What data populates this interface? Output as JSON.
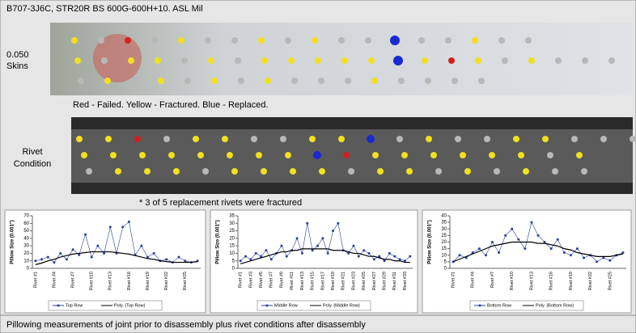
{
  "header": {
    "title": "B707-3J6C, STR20R BS 600G-600H+10. ASL Mil"
  },
  "photo_labels": {
    "skins_1": "0.050",
    "skins_2": "Skins",
    "rivet_1": "Rivet",
    "rivet_2": "Condition"
  },
  "captions": {
    "legend": "Red - Failed. Yellow - Fractured. Blue - Replaced.",
    "note": "* 3 of 5 replacement rivets were fractured"
  },
  "footer": "Pillowing measurements of joint prior to disassembly plus rivet conditions after disassembly",
  "chart_data": [
    {
      "type": "line",
      "y_label": "Pillow Size (0.001\")",
      "ylim": [
        0,
        70
      ],
      "yticks": [
        0,
        10,
        20,
        30,
        40,
        50,
        60,
        70
      ],
      "categories": [
        "Rivet #1",
        null,
        null,
        "Rivet #4",
        null,
        null,
        "Rivet #7",
        null,
        null,
        "Rivet #10",
        null,
        null,
        "Rivet #13",
        null,
        null,
        "Rivet #16",
        null,
        null,
        "Rivet #19",
        null,
        null,
        "Rivet #22",
        null,
        null,
        "Rivet #25",
        null,
        null
      ],
      "series": [
        {
          "name": "Top Row",
          "color": "#2a3fa0",
          "marker": true,
          "values": [
            10,
            12,
            15,
            8,
            20,
            12,
            25,
            18,
            45,
            15,
            30,
            20,
            55,
            20,
            55,
            62,
            18,
            30,
            15,
            20,
            10,
            12,
            8,
            15,
            10,
            8,
            10
          ]
        },
        {
          "name": "Poly. (Top Row)",
          "color": "#000000",
          "marker": false,
          "values": [
            5,
            7,
            10,
            12,
            15,
            17,
            19,
            20,
            21,
            22,
            22,
            22,
            22,
            21,
            20,
            19,
            17,
            15,
            13,
            12,
            10,
            9,
            8,
            8,
            8,
            8,
            9
          ]
        }
      ]
    },
    {
      "type": "line",
      "y_label": "Pillow Size (0.001\")",
      "ylim": [
        0,
        35
      ],
      "yticks": [
        0,
        5,
        10,
        15,
        20,
        25,
        30,
        35
      ],
      "categories": [
        "Rivet #1",
        null,
        "Rivet #3",
        null,
        "Rivet #5",
        null,
        "Rivet #7",
        null,
        "Rivet #9",
        null,
        "Rivet #11",
        null,
        "Rivet #13",
        null,
        "Rivet #15",
        null,
        "Rivet #17",
        null,
        "Rivet #19",
        null,
        "Rivet #21",
        null,
        "Rivet #23",
        null,
        "Rivet #25",
        null,
        "Rivet #27",
        null,
        "Rivet #29",
        null,
        "Rivet #31",
        null,
        "Rivet #33",
        null
      ],
      "series": [
        {
          "name": "Middle Row",
          "color": "#2a3fa0",
          "marker": true,
          "values": [
            5,
            8,
            6,
            10,
            8,
            12,
            6,
            10,
            15,
            8,
            12,
            20,
            10,
            30,
            12,
            15,
            20,
            10,
            25,
            30,
            12,
            10,
            15,
            8,
            12,
            10,
            6,
            8,
            5,
            10,
            8,
            6,
            5,
            8
          ]
        },
        {
          "name": "Poly. (Middle Row)",
          "color": "#000000",
          "marker": false,
          "values": [
            3,
            4,
            5,
            6,
            7,
            8,
            9,
            10,
            11,
            11,
            12,
            12,
            13,
            13,
            13,
            13,
            13,
            13,
            12,
            12,
            12,
            11,
            10,
            10,
            9,
            8,
            8,
            7,
            6,
            6,
            5,
            5,
            4,
            4
          ]
        }
      ]
    },
    {
      "type": "line",
      "y_label": "Pillow Size (0.001\")",
      "ylim": [
        0,
        40
      ],
      "yticks": [
        0,
        5,
        10,
        15,
        20,
        25,
        30,
        35,
        40
      ],
      "categories": [
        "Rivet #1",
        null,
        null,
        "Rivet #4",
        null,
        null,
        "Rivet #7",
        null,
        null,
        "Rivet #10",
        null,
        null,
        "Rivet #13",
        null,
        null,
        "Rivet #16",
        null,
        null,
        "Rivet #19",
        null,
        null,
        "Rivet #22",
        null,
        null,
        "Rivet #25",
        null,
        null
      ],
      "series": [
        {
          "name": "Bottom Row",
          "color": "#2a3fa0",
          "marker": true,
          "values": [
            5,
            10,
            8,
            12,
            15,
            10,
            20,
            12,
            25,
            30,
            22,
            15,
            35,
            25,
            20,
            15,
            22,
            12,
            10,
            15,
            8,
            10,
            5,
            8,
            6,
            10,
            12
          ]
        },
        {
          "name": "Poly. (Bottom Row)",
          "color": "#000000",
          "marker": false,
          "values": [
            5,
            7,
            9,
            11,
            13,
            15,
            17,
            18,
            19,
            20,
            20,
            20,
            20,
            19,
            19,
            18,
            17,
            15,
            14,
            12,
            11,
            10,
            9,
            9,
            9,
            10,
            11
          ]
        }
      ]
    }
  ]
}
